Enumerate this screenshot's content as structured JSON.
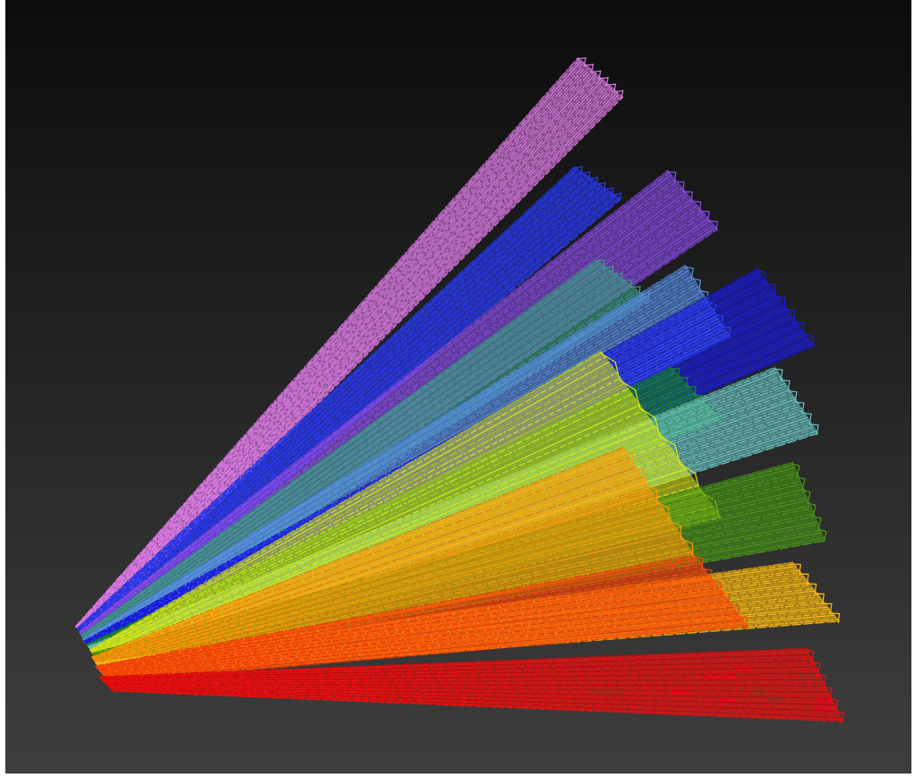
{
  "scene": {
    "background_top": "#0c0c0c",
    "background_bottom": "#3e3e3e",
    "frame_color": "#ffffff",
    "bundles": [
      {
        "name": "violet",
        "color": "#e07ee8",
        "edge": "#c86ad4"
      },
      {
        "name": "blue",
        "color": "#2a3af0",
        "edge": "#1e2cd0"
      },
      {
        "name": "purple",
        "color": "#8a4ee6",
        "edge": "#6e3ac8"
      },
      {
        "name": "teal",
        "color": "#3f9a8a",
        "edge": "#2e7a6c"
      },
      {
        "name": "sky-blue",
        "color": "#5a90e8",
        "edge": "#4676cc"
      },
      {
        "name": "deep-blue",
        "color": "#1a1ce8",
        "edge": "#1010c0"
      },
      {
        "name": "dark-green",
        "color": "#168a2a",
        "edge": "#0e6a1e"
      },
      {
        "name": "cyan",
        "color": "#6cc4c4",
        "edge": "#52a6a6"
      },
      {
        "name": "yellow",
        "color": "#dcea12",
        "edge": "#b8c60c"
      },
      {
        "name": "lime-green",
        "color": "#4a9a16",
        "edge": "#387a10"
      },
      {
        "name": "orange",
        "color": "#ff9a0a",
        "edge": "#d87c04"
      },
      {
        "name": "amber",
        "color": "#ffbe10",
        "edge": "#d89c08"
      },
      {
        "name": "red-orange",
        "color": "#ff4a0a",
        "edge": "#d43a06"
      },
      {
        "name": "red",
        "color": "#ee1010",
        "edge": "#c20808"
      }
    ]
  }
}
